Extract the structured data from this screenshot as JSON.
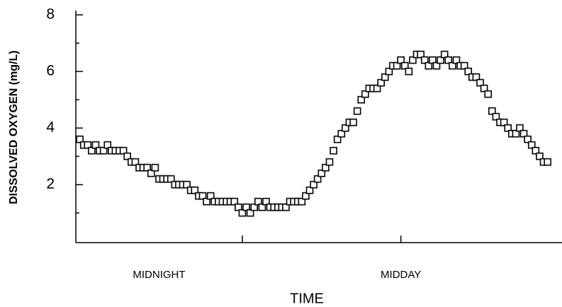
{
  "chart_data": {
    "type": "scatter",
    "x_label": "TIME",
    "y_label": "DISSOLVED OXYGEN (mg/L)",
    "x": [
      1,
      2,
      3,
      4,
      5,
      6,
      7,
      8,
      9,
      10,
      11,
      12,
      13,
      14,
      15,
      16,
      17,
      18,
      19,
      20,
      21,
      22,
      23,
      24,
      25,
      26,
      27,
      28,
      29,
      30,
      31,
      32,
      33,
      34,
      35,
      36,
      37,
      38,
      39,
      40,
      41,
      42,
      43,
      44,
      45,
      46,
      47,
      48,
      49,
      50,
      51,
      52,
      53,
      54,
      55,
      56,
      57,
      58,
      59,
      60,
      61,
      62,
      63,
      64,
      65,
      66,
      67,
      68,
      69,
      70,
      71,
      72,
      73,
      74,
      75,
      76,
      77,
      78,
      79,
      80,
      81,
      82,
      83,
      84,
      85,
      86,
      87,
      88,
      89,
      90,
      91,
      92,
      93,
      94,
      95,
      96,
      97,
      98,
      99,
      100,
      101,
      102,
      103,
      104,
      105,
      106,
      107,
      108,
      109,
      110,
      111,
      112,
      113,
      114,
      115,
      116,
      117,
      118,
      119
    ],
    "values": [
      3.6,
      3.4,
      3.4,
      3.2,
      3.4,
      3.2,
      3.2,
      3.4,
      3.2,
      3.2,
      3.2,
      3.2,
      3.0,
      2.8,
      2.8,
      2.6,
      2.6,
      2.6,
      2.4,
      2.6,
      2.2,
      2.2,
      2.2,
      2.2,
      2.0,
      2.0,
      2.0,
      2.0,
      1.8,
      1.8,
      1.6,
      1.6,
      1.4,
      1.6,
      1.4,
      1.4,
      1.4,
      1.4,
      1.4,
      1.4,
      1.2,
      1.0,
      1.2,
      1.0,
      1.2,
      1.4,
      1.2,
      1.4,
      1.2,
      1.2,
      1.2,
      1.2,
      1.2,
      1.4,
      1.4,
      1.4,
      1.4,
      1.6,
      1.8,
      2.0,
      2.2,
      2.4,
      2.6,
      2.8,
      3.2,
      3.6,
      3.8,
      4.0,
      4.2,
      4.2,
      4.6,
      5.0,
      5.2,
      5.4,
      5.4,
      5.4,
      5.6,
      5.8,
      6.0,
      6.2,
      6.2,
      6.4,
      6.2,
      6.0,
      6.4,
      6.6,
      6.6,
      6.4,
      6.2,
      6.4,
      6.2,
      6.4,
      6.6,
      6.4,
      6.2,
      6.4,
      6.2,
      6.2,
      6.0,
      5.8,
      5.8,
      5.6,
      5.4,
      5.2,
      4.6,
      4.4,
      4.2,
      4.2,
      4.0,
      3.8,
      3.8,
      4.0,
      3.8,
      3.6,
      3.4,
      3.2,
      3.0,
      2.8,
      2.8
    ],
    "color": "#000000",
    "xlim": [
      0,
      123
    ],
    "xticks": [
      42,
      82
    ],
    "x_labels": [
      {
        "value": 21,
        "label": "MIDNIGHT"
      },
      {
        "value": 82,
        "label": "MIDDAY"
      }
    ],
    "ylim": [
      0,
      8
    ],
    "yticks": [
      2,
      4,
      6,
      8
    ],
    "yminorticks": [
      1,
      3,
      5,
      7
    ]
  }
}
